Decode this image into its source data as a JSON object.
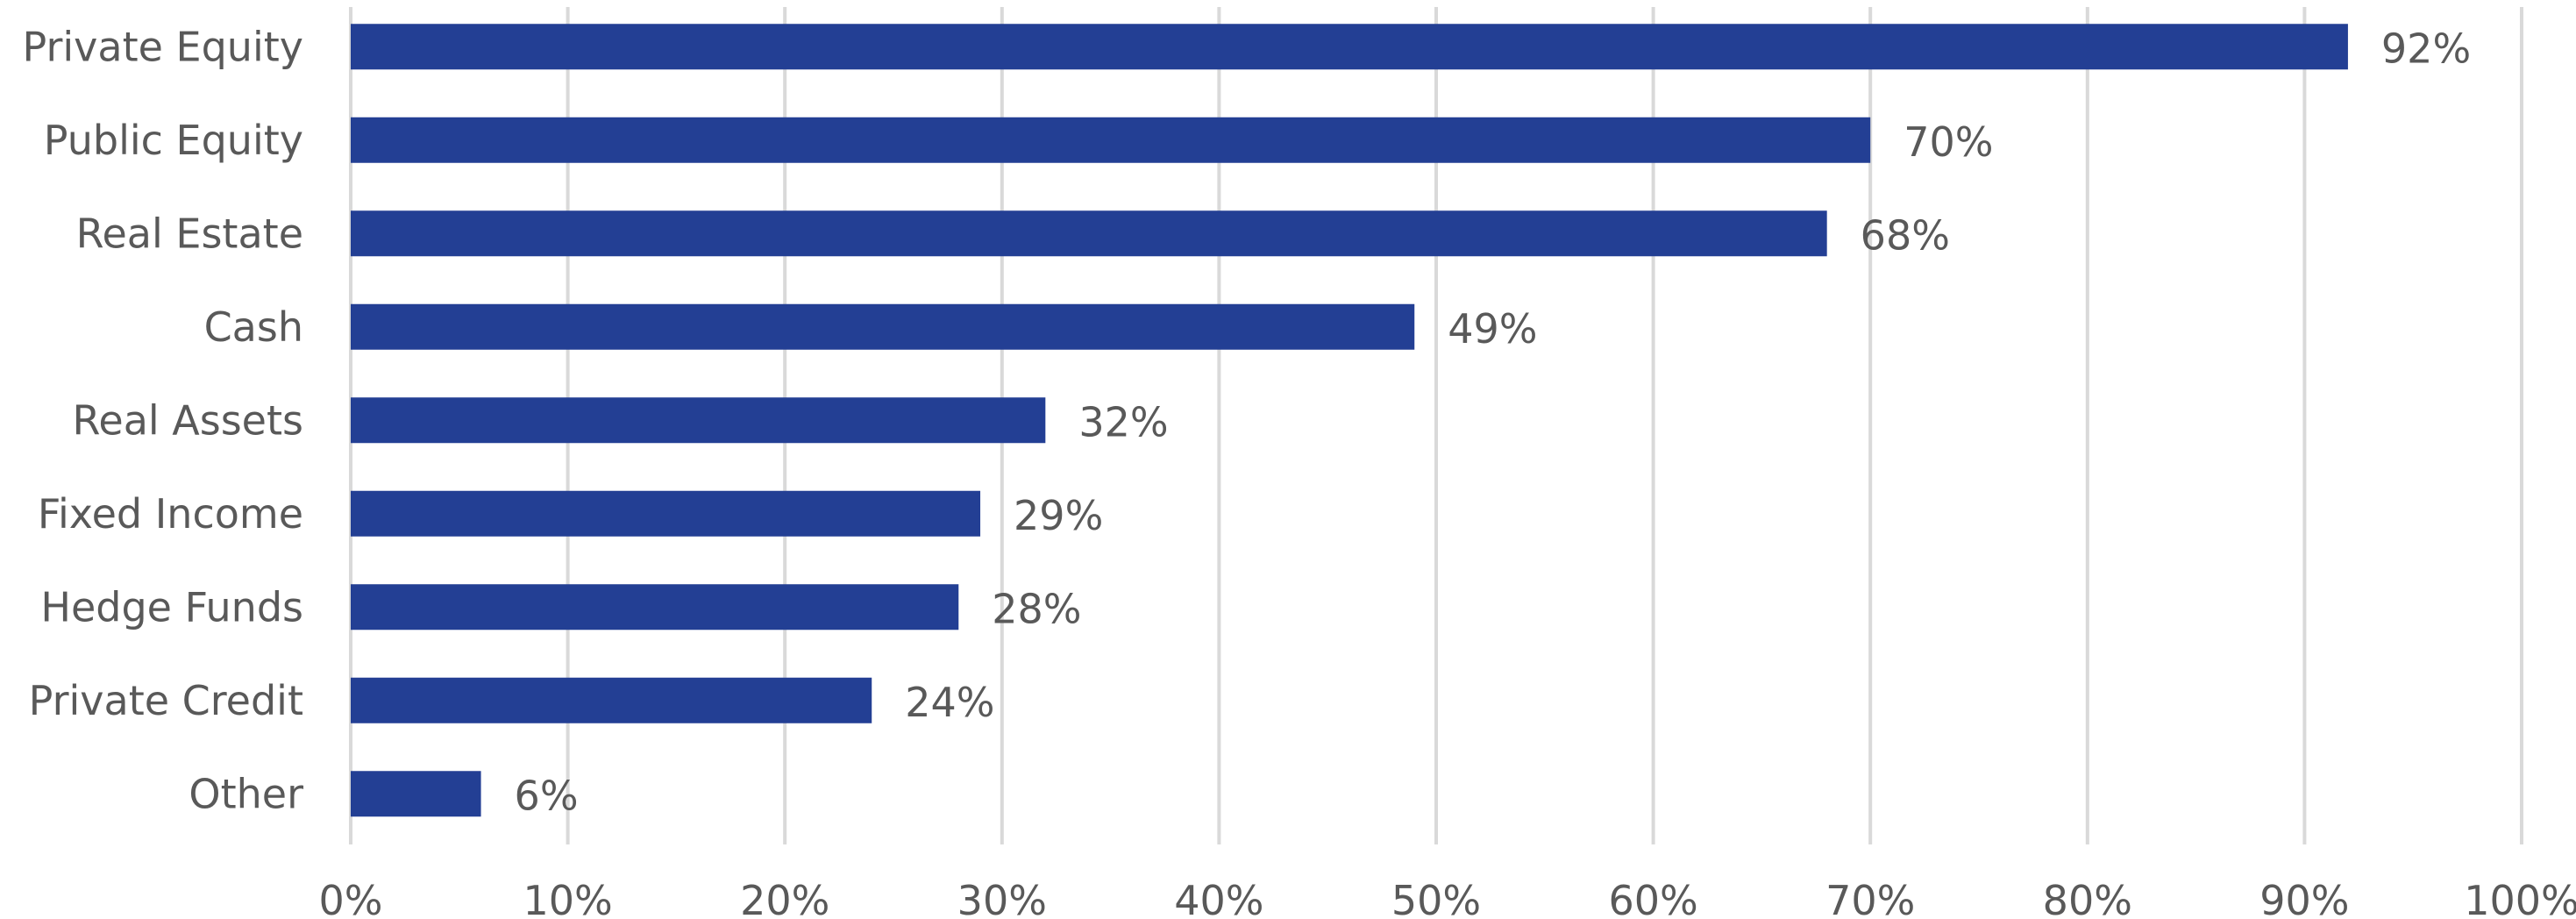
{
  "chart_data": {
    "type": "bar",
    "orientation": "horizontal",
    "categories": [
      "Private Equity",
      "Public Equity",
      "Real Estate",
      "Cash",
      "Real Assets",
      "Fixed Income",
      "Hedge Funds",
      "Private Credit",
      "Other"
    ],
    "values": [
      92,
      70,
      68,
      49,
      32,
      29,
      28,
      24,
      6
    ],
    "data_labels": [
      "92%",
      "70%",
      "68%",
      "49%",
      "32%",
      "29%",
      "28%",
      "24%",
      "6%"
    ],
    "xlim": [
      0,
      100
    ],
    "x_ticks": [
      0,
      10,
      20,
      30,
      40,
      50,
      60,
      70,
      80,
      90,
      100
    ],
    "x_tick_labels": [
      "0%",
      "10%",
      "20%",
      "30%",
      "40%",
      "50%",
      "60%",
      "70%",
      "80%",
      "90%",
      "100%"
    ],
    "grid": true,
    "legend": "none",
    "colors": {
      "bar": "#233f94",
      "gridline": "#d9d9d9",
      "text": "#595959"
    }
  }
}
